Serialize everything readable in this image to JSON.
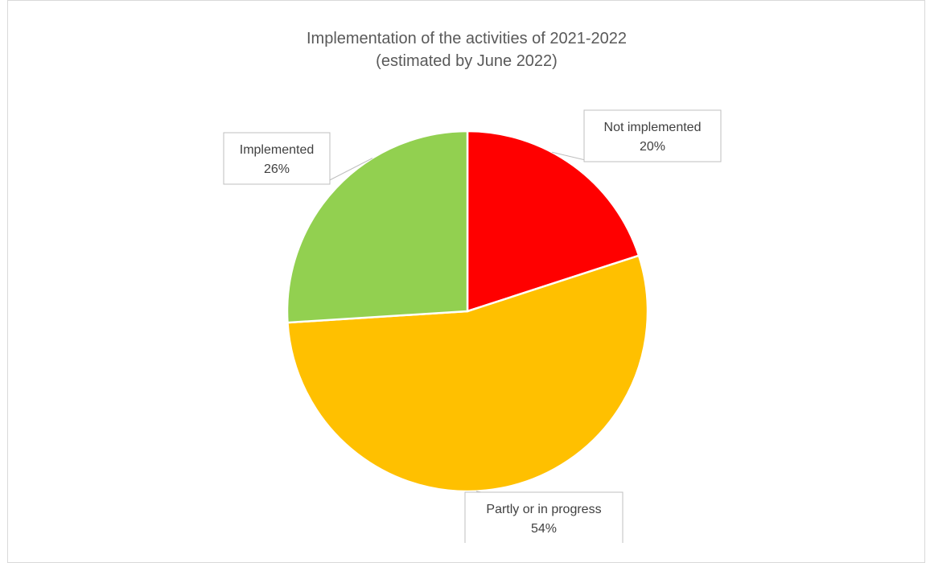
{
  "chart_data": {
    "type": "pie",
    "title": [
      "Implementation of the activities of 2021-2022",
      "(estimated by June 2022)"
    ],
    "slices": [
      {
        "label": "Not implemented",
        "value": 20,
        "value_label": "20%",
        "color": "#ff0000"
      },
      {
        "label": "Partly or in progress",
        "value": 54,
        "value_label": "54%",
        "color": "#ffc000"
      },
      {
        "label": "Implemented",
        "value": 26,
        "value_label": "26%",
        "color": "#92d050"
      }
    ],
    "start_angle_deg": 0,
    "direction": "clockwise",
    "legend": "none",
    "data_labels": "callout"
  }
}
